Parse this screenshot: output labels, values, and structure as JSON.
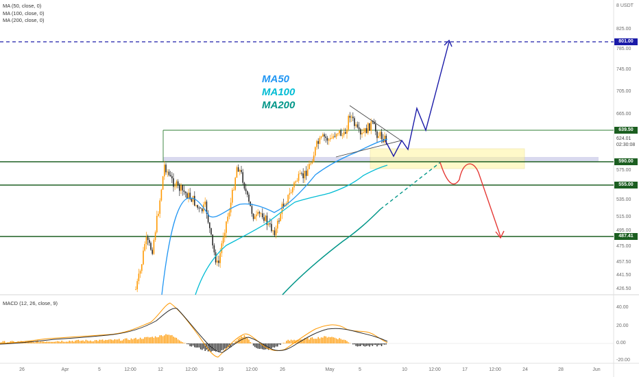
{
  "legend": {
    "ma50": "MA (50, close, 0)",
    "ma100": "MA (100, close, 0)",
    "ma200": "MA (200, close, 0)"
  },
  "macd_legend": "MACD (12, 26, close, 9)",
  "currency": "USDT",
  "currency_prefix": "8",
  "annotations": {
    "ma50": "MA50",
    "ma100": "MA100",
    "ma200": "MA200",
    "colors": {
      "ma50": "#2196f3",
      "ma100": "#00bcd4",
      "ma200": "#009688"
    }
  },
  "price_ticks": [
    "825.00",
    "785.00",
    "745.00",
    "705.00",
    "665.00",
    "575.00",
    "535.00",
    "515.00",
    "495.00",
    "475.00",
    "457.50",
    "441.50",
    "426.50"
  ],
  "badges": {
    "target": "801.00",
    "resistance": "639.50",
    "current": "624.01",
    "countdown": "02:30:08",
    "support1": "590.00",
    "support2": "555.00",
    "support3": "487.41"
  },
  "macd_ticks": [
    "40.00",
    "20.00",
    "0.00",
    "-20.00"
  ],
  "time_ticks": [
    "26",
    "Apr",
    "5",
    "12:00",
    "12",
    "12:00",
    "19",
    "12:00",
    "26",
    "May",
    "5",
    "10",
    "12:00",
    "17",
    "12:00",
    "24",
    "28",
    "Jun"
  ],
  "colors": {
    "candle_up": "#ff9800",
    "candle_down": "#2a2a2a",
    "ma50": "#2196f3",
    "ma100": "#00bcd4",
    "ma200": "#009688",
    "level_line": "#1b5e20",
    "target_line": "#1a1aa8",
    "projection_up": "#1a1aa8",
    "projection_down": "#e53935"
  }
}
